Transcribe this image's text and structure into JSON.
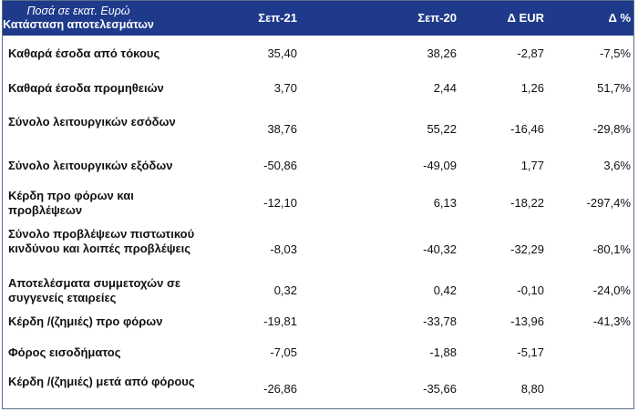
{
  "header": {
    "units": "Ποσά σε εκατ. Ευρώ",
    "title": "Κατάσταση αποτελεσμάτων",
    "columns": [
      "Σεπ-21",
      "Σεπ-20",
      "Δ EUR",
      "Δ %"
    ]
  },
  "rows": [
    {
      "label": "Καθαρά έσοδα από τόκους",
      "values": [
        "35,40",
        "38,26",
        "-2,87",
        "-7,5%"
      ]
    },
    {
      "label": "Καθαρά έσοδα προμηθειών",
      "values": [
        "3,70",
        "2,44",
        "1,26",
        "51,7%"
      ]
    },
    {
      "label": "Σύνολο λειτουργικών εσόδων",
      "values": [
        "38,76",
        "55,22",
        "-16,46",
        "-29,8%"
      ]
    },
    {
      "label": "Σύνολο λειτουργικών εξόδων",
      "values": [
        "-50,86",
        "-49,09",
        "1,77",
        "3,6%"
      ]
    },
    {
      "label": "Κέρδη προ φόρων και προβλέψεων",
      "values": [
        "-12,10",
        "6,13",
        "-18,22",
        "-297,4%"
      ]
    },
    {
      "label": "Σύνολο προβλέψεων πιστωτικού κινδύνου και λοιπές προβλέψεις",
      "values": [
        "-8,03",
        "-40,32",
        "-32,29",
        "-80,1%"
      ]
    },
    {
      "label": "Αποτελέσματα συμμετοχών σε συγγενείς εταιρείες",
      "values": [
        "0,32",
        "0,42",
        "-0,10",
        "-24,0%"
      ]
    },
    {
      "label": "Κέρδη /(ζημιές) προ φόρων",
      "values": [
        "-19,81",
        "-33,78",
        "-13,96",
        "-41,3%"
      ]
    },
    {
      "label": "Φόρος εισοδήματος",
      "values": [
        "-7,05",
        "-1,88",
        "-5,17",
        ""
      ]
    },
    {
      "label": "Κέρδη /(ζημιές) μετά από φόρους",
      "values": [
        "-26,86",
        "-35,66",
        "8,80",
        ""
      ]
    }
  ]
}
